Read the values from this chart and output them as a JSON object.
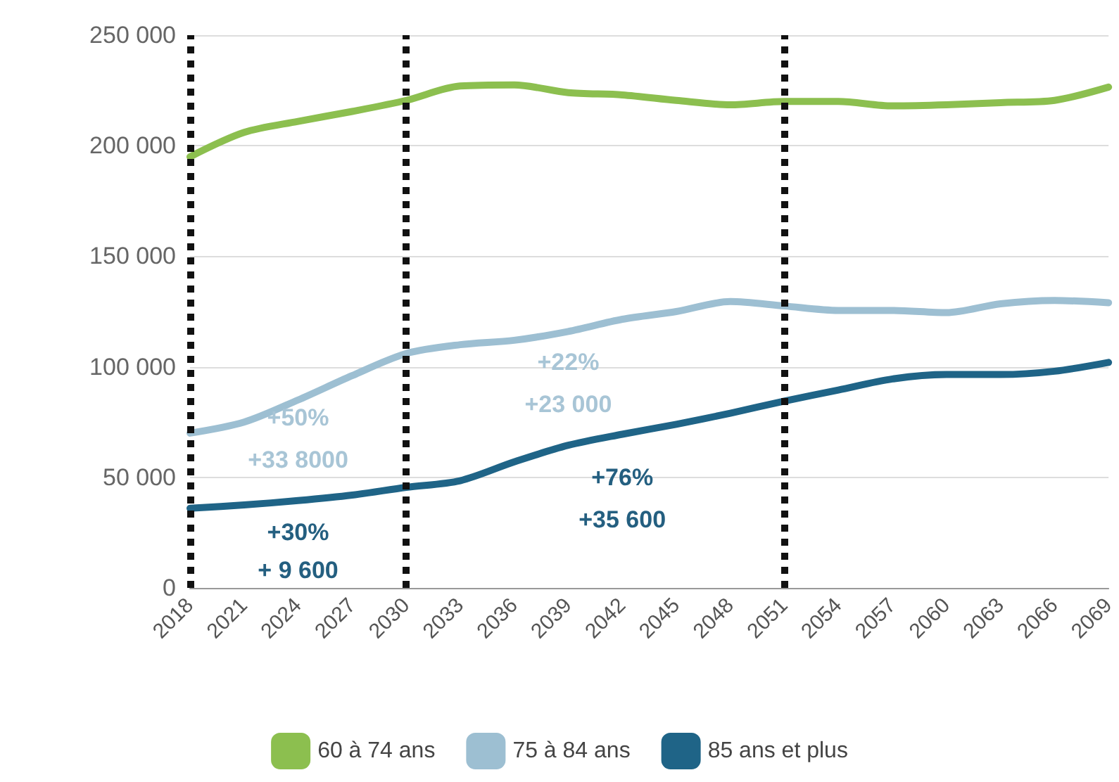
{
  "chart_data": {
    "type": "line",
    "categories": [
      "2018",
      "2021",
      "2024",
      "2027",
      "2030",
      "2033",
      "2036",
      "2039",
      "2042",
      "2045",
      "2048",
      "2051",
      "2054",
      "2057",
      "2060",
      "2063",
      "2066",
      "2069"
    ],
    "series": [
      {
        "name": "60 à 74 ans",
        "color": "#8cbf4f",
        "values": [
          195000,
          206000,
          211000,
          215500,
          220500,
          227000,
          227500,
          224000,
          223000,
          220500,
          218500,
          220000,
          220000,
          218000,
          218500,
          219500,
          220500,
          226500
        ]
      },
      {
        "name": "75 à 84 ans",
        "color": "#9dbfd2",
        "values": [
          70000,
          75000,
          85000,
          96000,
          106000,
          110000,
          112000,
          116000,
          121500,
          125000,
          129500,
          127500,
          125500,
          125500,
          124500,
          128500,
          130000,
          129000
        ]
      },
      {
        "name": "85 ans et plus",
        "color": "#1f6487",
        "values": [
          36000,
          37500,
          39500,
          42000,
          45500,
          48500,
          57000,
          64500,
          69500,
          74000,
          79000,
          84500,
          89500,
          94500,
          96500,
          96500,
          98000,
          102000
        ]
      }
    ],
    "ylim": [
      0,
      250000
    ],
    "yticks": [
      0,
      {
        "value": 50000,
        "label": "50 000"
      },
      {
        "value": 100000,
        "label": "100 000"
      },
      {
        "value": 150000,
        "label": "150 000"
      },
      {
        "value": 200000,
        "label": "200 000"
      },
      {
        "value": 250000,
        "label": "250 000"
      }
    ],
    "grid": "y",
    "legend": "bottom",
    "marker": "none",
    "line_style": "solid",
    "ref_lines": [
      {
        "axis": "x",
        "value": "2018",
        "color": "#111111",
        "line_style": "dotted"
      },
      {
        "axis": "x",
        "value": "2030",
        "color": "#111111",
        "line_style": "dotted"
      },
      {
        "axis": "x",
        "value": "2051",
        "color": "#111111",
        "line_style": "dotted"
      }
    ],
    "annotations": [
      "+50%",
      "+33 8000",
      "+30%",
      "+ 9 600",
      "+22%",
      "+23 000",
      "+76%",
      "+35 600"
    ]
  }
}
